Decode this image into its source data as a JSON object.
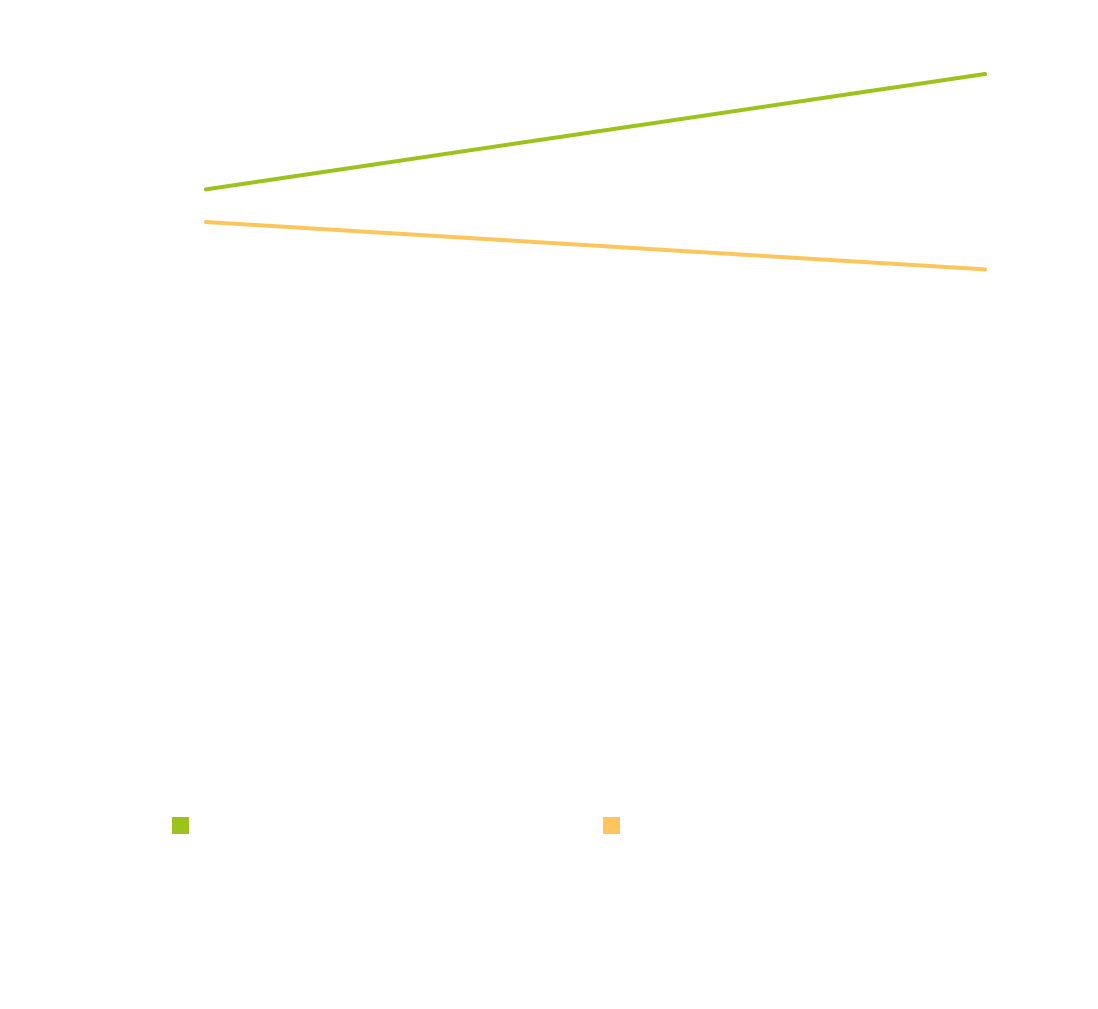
{
  "chart_data": {
    "type": "line",
    "x": [
      0,
      1
    ],
    "series": [
      {
        "values": [
          68,
          87.5
        ],
        "color": "#9cc31c"
      },
      {
        "values": [
          62.5,
          54.5
        ],
        "color": "#fdc65c"
      }
    ],
    "ylim": [
      0,
      100
    ],
    "grid": false,
    "legend": "bottom"
  }
}
